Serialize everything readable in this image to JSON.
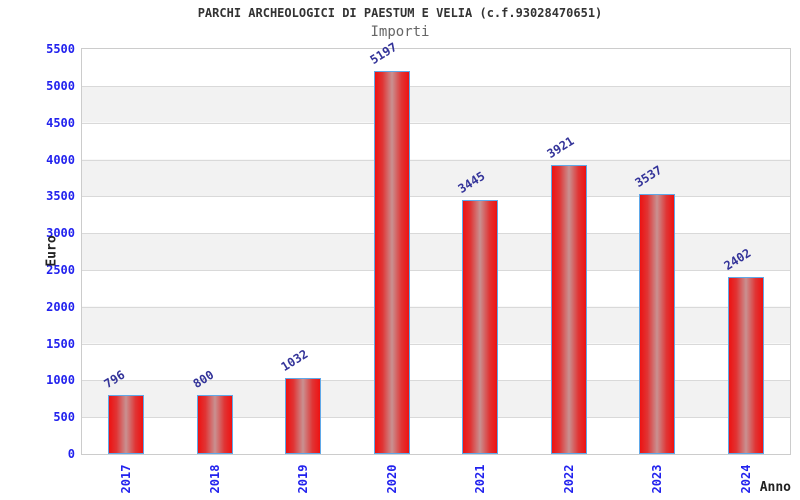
{
  "header": {
    "title": "PARCHI ARCHEOLOGICI DI PAESTUM E VELIA (c.f.93028470651)",
    "subtitle": "Importi"
  },
  "chart_data": {
    "type": "bar",
    "title": "PARCHI ARCHEOLOGICI DI PAESTUM E VELIA (c.f.93028470651)",
    "subtitle": "Importi",
    "categories": [
      "2017",
      "2018",
      "2019",
      "2020",
      "2021",
      "2022",
      "2023",
      "2024"
    ],
    "values": [
      796,
      800,
      1032,
      5197,
      3445,
      3921,
      3537,
      2402
    ],
    "xlabel": "Anno",
    "ylabel": "Euro",
    "ylim": [
      0,
      5500
    ],
    "ytick_step": 500,
    "yticks": [
      0,
      500,
      1000,
      1500,
      2000,
      2500,
      3000,
      3500,
      4000,
      4500,
      5000,
      5500
    ],
    "grid": true,
    "legend": false,
    "bands": "alternating white/gray horizontal bands, white at top and bottom",
    "value_labels_rotated_deg": -32,
    "x_labels_rotated_deg": -90,
    "colors": {
      "bar_edge": "#ee1212",
      "bar_center": "#c99191",
      "bar_border": "#5fa8e8",
      "tick_label": "#2222ee",
      "value_label": "#333399",
      "band_gray": "#f2f2f2",
      "gridline": "#d9d9d9",
      "plot_border": "#cccccc",
      "title_color": "#333333",
      "subtitle_color": "#666666",
      "axis_title_color": "#222222",
      "background": "#ffffff"
    }
  }
}
